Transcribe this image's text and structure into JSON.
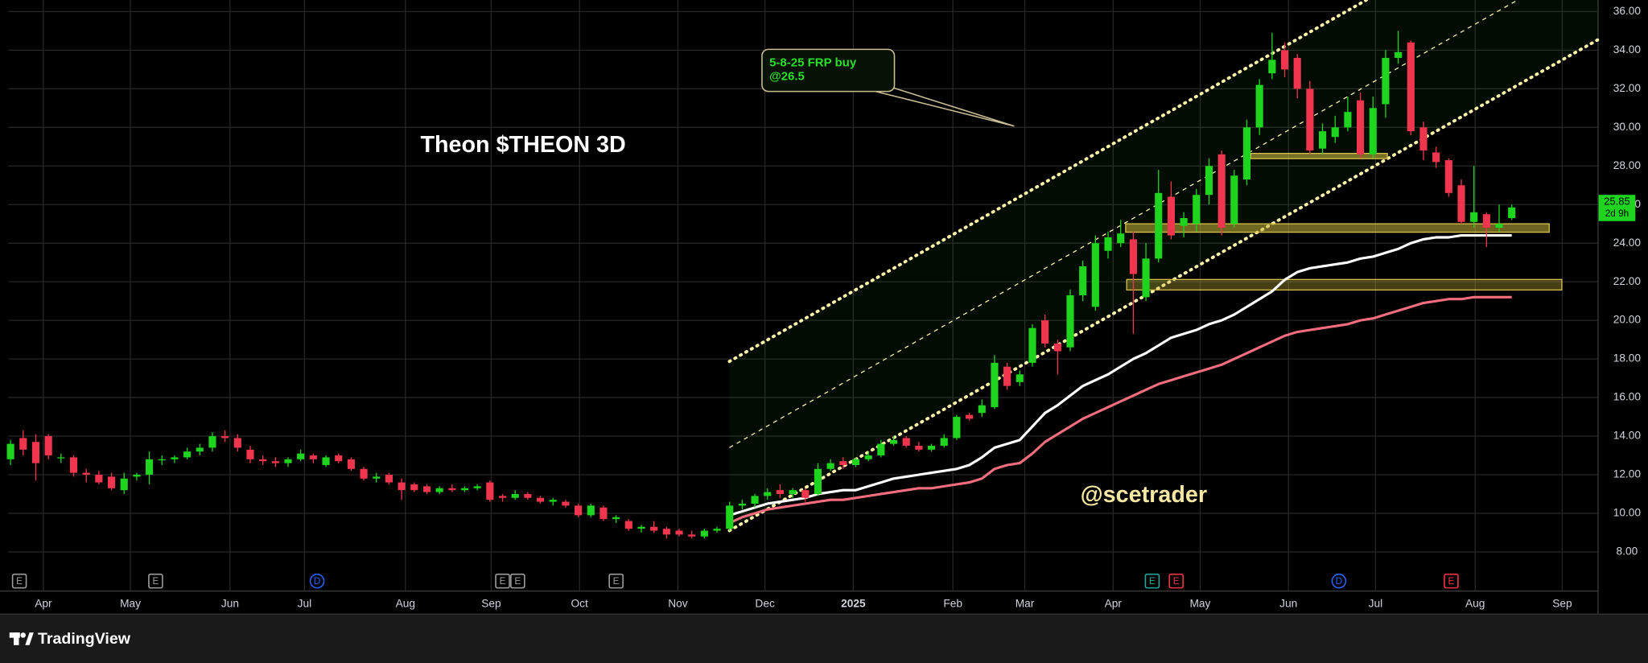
{
  "chart_data": {
    "type": "candlestick",
    "title": "Theon $THEON 3D",
    "annotation": [
      "5-8-25 FRP buy",
      "@26.5"
    ],
    "watermark": "@scetrader",
    "countdown": "2d 9h",
    "brand": "TradingView",
    "up_color": "#1ed41e",
    "down_color": "#f0364f",
    "grid": true,
    "open": [
      12.8,
      13.9,
      13.7,
      14.0,
      12.9,
      12.9,
      12.1,
      12.0,
      11.9,
      11.2,
      11.9,
      12.0,
      12.8,
      12.8,
      12.9,
      13.2,
      13.4,
      14.0,
      13.9,
      13.3,
      12.8,
      12.7,
      12.6,
      12.8,
      13.0,
      12.5,
      13.0,
      12.8,
      12.3,
      11.8,
      12.0,
      11.6,
      11.5,
      11.4,
      11.1,
      11.3,
      11.2,
      11.3,
      11.6,
      10.9,
      10.8,
      11.0,
      10.8,
      10.6,
      10.6,
      10.4,
      9.9,
      10.3,
      9.7,
      9.6,
      9.2,
      9.3,
      9.2,
      9.1,
      8.9,
      8.8,
      9.1,
      9.2,
      10.4,
      10.5,
      10.9,
      11.2,
      11.0,
      11.2,
      11.0,
      12.3,
      12.7,
      12.5,
      12.8,
      13.0,
      13.6,
      13.9,
      13.5,
      13.3,
      13.5,
      13.9,
      15.1,
      15.2,
      15.5,
      17.6,
      16.8,
      17.8,
      20.0,
      18.8,
      18.6,
      21.3,
      20.7,
      23.6,
      24.0,
      24.2,
      21.2,
      23.2,
      26.4,
      24.9,
      25.0,
      26.5,
      28.6,
      25.0,
      27.3,
      30.0,
      32.8,
      34.0,
      33.6,
      32.0,
      28.9,
      29.5,
      30.0,
      31.4,
      28.6,
      31.2,
      33.6,
      34.4,
      30.0,
      28.7,
      28.3,
      27.0,
      25.1,
      25.5,
      24.8,
      25.3
    ],
    "high": [
      13.8,
      14.3,
      14.1,
      14.1,
      13.1,
      13.0,
      12.3,
      12.2,
      12.1,
      12.1,
      12.1,
      13.2,
      13.0,
      13.0,
      13.4,
      13.6,
      14.2,
      14.3,
      14.1,
      13.5,
      13.0,
      12.9,
      12.9,
      13.3,
      13.1,
      13.0,
      13.1,
      12.9,
      12.4,
      12.1,
      12.1,
      11.8,
      11.6,
      11.5,
      11.4,
      11.5,
      11.4,
      11.5,
      11.7,
      11.0,
      11.2,
      11.1,
      10.9,
      10.8,
      10.7,
      10.5,
      10.5,
      10.4,
      9.9,
      9.7,
      9.4,
      9.6,
      9.3,
      9.2,
      9.1,
      9.2,
      9.3,
      10.6,
      10.7,
      11.0,
      11.3,
      11.5,
      11.3,
      11.3,
      12.6,
      12.8,
      12.9,
      12.9,
      13.2,
      13.8,
      14.0,
      14.0,
      13.7,
      13.6,
      14.1,
      15.1,
      15.2,
      15.9,
      18.2,
      17.8,
      17.4,
      19.8,
      20.3,
      19.0,
      21.6,
      23.1,
      24.4,
      24.6,
      25.2,
      24.6,
      24.0,
      27.8,
      27.2,
      25.6,
      26.8,
      28.4,
      28.8,
      27.8,
      30.4,
      32.5,
      34.9,
      34.4,
      33.8,
      32.4,
      30.2,
      30.6,
      31.6,
      31.8,
      31.6,
      34.0,
      35.0,
      34.5,
      30.3,
      29.0,
      28.4,
      27.3,
      28.0,
      25.6,
      26.0,
      26.0
    ],
    "low": [
      12.5,
      13.0,
      11.7,
      12.8,
      12.6,
      11.9,
      11.6,
      11.5,
      11.2,
      11.0,
      11.7,
      11.5,
      12.5,
      12.6,
      12.8,
      13.0,
      13.2,
      13.7,
      13.2,
      12.6,
      12.5,
      12.4,
      12.4,
      12.7,
      12.6,
      12.4,
      12.6,
      12.2,
      11.7,
      11.6,
      11.5,
      10.7,
      11.1,
      11.0,
      11.0,
      11.1,
      11.1,
      11.2,
      10.6,
      10.6,
      10.7,
      10.7,
      10.5,
      10.4,
      10.3,
      9.8,
      9.8,
      9.6,
      9.5,
      9.1,
      9.0,
      9.0,
      8.7,
      8.8,
      8.7,
      8.7,
      9.0,
      9.1,
      10.2,
      10.3,
      10.7,
      10.8,
      10.8,
      10.6,
      10.9,
      12.2,
      12.3,
      12.4,
      12.7,
      12.9,
      13.5,
      13.4,
      13.2,
      13.2,
      13.4,
      13.8,
      14.8,
      15.0,
      15.4,
      16.4,
      16.6,
      17.6,
      18.6,
      17.2,
      18.4,
      21.0,
      20.5,
      23.2,
      23.8,
      19.3,
      21.0,
      23.0,
      24.2,
      24.3,
      24.6,
      26.0,
      24.4,
      24.8,
      27.0,
      29.6,
      32.5,
      32.6,
      31.5,
      28.6,
      28.6,
      29.2,
      29.8,
      28.4,
      28.4,
      30.5,
      33.3,
      29.6,
      28.3,
      27.9,
      26.4,
      25.0,
      24.8,
      23.8,
      24.6,
      25.2
    ],
    "close": [
      13.6,
      13.3,
      12.6,
      13.0,
      12.9,
      12.1,
      12.0,
      11.6,
      11.3,
      11.8,
      12.0,
      12.8,
      12.8,
      12.9,
      13.2,
      13.4,
      14.0,
      13.9,
      13.4,
      12.8,
      12.7,
      12.6,
      12.8,
      13.1,
      12.8,
      12.9,
      12.7,
      12.3,
      11.8,
      11.9,
      11.6,
      11.2,
      11.2,
      11.1,
      11.3,
      11.2,
      11.3,
      11.4,
      10.7,
      10.8,
      11.0,
      10.8,
      10.6,
      10.7,
      10.4,
      9.9,
      10.4,
      9.7,
      9.8,
      9.2,
      9.3,
      9.1,
      8.9,
      8.9,
      8.8,
      9.1,
      9.2,
      10.4,
      10.5,
      10.9,
      11.1,
      11.0,
      11.2,
      10.8,
      12.3,
      12.6,
      12.5,
      12.8,
      13.0,
      13.6,
      13.8,
      13.5,
      13.3,
      13.5,
      13.9,
      15.0,
      14.9,
      15.6,
      17.8,
      16.6,
      17.2,
      19.6,
      18.8,
      18.4,
      21.3,
      22.8,
      24.0,
      24.3,
      24.5,
      22.4,
      23.2,
      26.6,
      24.4,
      25.3,
      26.5,
      28.0,
      24.8,
      27.5,
      30.0,
      32.2,
      33.5,
      33.0,
      32.0,
      28.8,
      29.8,
      30.0,
      30.8,
      28.6,
      31.0,
      33.6,
      33.9,
      29.8,
      28.8,
      28.2,
      26.6,
      25.1,
      25.6,
      24.8,
      25.0,
      25.85
    ],
    "lines": [
      {
        "color": "#ffffff",
        "values": [
          null,
          null,
          null,
          null,
          null,
          null,
          null,
          null,
          null,
          null,
          null,
          null,
          null,
          null,
          null,
          null,
          null,
          null,
          null,
          null,
          null,
          null,
          null,
          null,
          null,
          null,
          null,
          null,
          null,
          null,
          null,
          null,
          null,
          null,
          null,
          null,
          null,
          null,
          null,
          null,
          null,
          null,
          null,
          null,
          null,
          null,
          null,
          null,
          null,
          null,
          null,
          null,
          null,
          null,
          null,
          null,
          null,
          9.9,
          10.1,
          10.3,
          10.5,
          10.6,
          10.7,
          10.8,
          11.0,
          11.1,
          11.2,
          11.2,
          11.4,
          11.6,
          11.8,
          11.9,
          12.0,
          12.1,
          12.2,
          12.3,
          12.5,
          12.9,
          13.4,
          13.6,
          13.8,
          14.5,
          15.2,
          15.6,
          16.1,
          16.6,
          16.9,
          17.2,
          17.6,
          18.0,
          18.3,
          18.7,
          19.1,
          19.3,
          19.5,
          19.8,
          20.0,
          20.3,
          20.7,
          21.1,
          21.5,
          22.1,
          22.5,
          22.7,
          22.8,
          22.9,
          23.0,
          23.2,
          23.3,
          23.5,
          23.7,
          24.0,
          24.2,
          24.3,
          24.3,
          24.4,
          24.4,
          24.4,
          24.4,
          24.4
        ]
      },
      {
        "color": "#f26d7d",
        "values": [
          null,
          null,
          null,
          null,
          null,
          null,
          null,
          null,
          null,
          null,
          null,
          null,
          null,
          null,
          null,
          null,
          null,
          null,
          null,
          null,
          null,
          null,
          null,
          null,
          null,
          null,
          null,
          null,
          null,
          null,
          null,
          null,
          null,
          null,
          null,
          null,
          null,
          null,
          null,
          null,
          null,
          null,
          null,
          null,
          null,
          null,
          null,
          null,
          null,
          null,
          null,
          null,
          null,
          null,
          null,
          null,
          null,
          9.5,
          9.8,
          10.0,
          10.2,
          10.3,
          10.4,
          10.5,
          10.6,
          10.7,
          10.7,
          10.8,
          10.9,
          11.0,
          11.1,
          11.2,
          11.3,
          11.3,
          11.4,
          11.5,
          11.6,
          11.8,
          12.3,
          12.5,
          12.6,
          13.1,
          13.7,
          14.1,
          14.5,
          14.9,
          15.2,
          15.5,
          15.8,
          16.1,
          16.4,
          16.7,
          16.9,
          17.1,
          17.3,
          17.5,
          17.7,
          18.0,
          18.3,
          18.6,
          18.9,
          19.2,
          19.4,
          19.5,
          19.6,
          19.7,
          19.8,
          20.0,
          20.1,
          20.3,
          20.5,
          20.7,
          20.9,
          21.0,
          21.1,
          21.1,
          21.2,
          21.2,
          21.2,
          21.2
        ]
      }
    ],
    "xlim": [
      -0.17,
      125.8
    ],
    "xticks": [
      {
        "value": 2.6,
        "label": "Apr"
      },
      {
        "value": 9.5,
        "label": "May"
      },
      {
        "value": 17.4,
        "label": "Jun"
      },
      {
        "value": 23.3,
        "label": "Jul"
      },
      {
        "value": 31.3,
        "label": "Aug"
      },
      {
        "value": 38.1,
        "label": "Sep"
      },
      {
        "value": 45.1,
        "label": "Oct"
      },
      {
        "value": 52.9,
        "label": "Nov"
      },
      {
        "value": 59.8,
        "label": "Dec"
      },
      {
        "value": 66.8,
        "label": "2025"
      },
      {
        "value": 74.7,
        "label": "Feb"
      },
      {
        "value": 80.4,
        "label": "Mar"
      },
      {
        "value": 87.4,
        "label": "Apr"
      },
      {
        "value": 94.3,
        "label": "May"
      },
      {
        "value": 101.3,
        "label": "Jun"
      },
      {
        "value": 108.2,
        "label": "Jul"
      },
      {
        "value": 116.1,
        "label": "Aug"
      },
      {
        "value": 123,
        "label": "Sep"
      }
    ],
    "ylim": [
      6.0,
      36.6
    ],
    "yticks": [
      {
        "value": 8,
        "label": "8.00"
      },
      {
        "value": 10,
        "label": "10.00"
      },
      {
        "value": 12,
        "label": "12.00"
      },
      {
        "value": 14,
        "label": "14.00"
      },
      {
        "value": 16,
        "label": "16.00"
      },
      {
        "value": 18,
        "label": "18.00"
      },
      {
        "value": 20,
        "label": "20.00"
      },
      {
        "value": 22,
        "label": "22.00"
      },
      {
        "value": 24,
        "label": "24.00"
      },
      {
        "value": 26,
        "label": "26.00"
      },
      {
        "value": 28,
        "label": "28.00"
      },
      {
        "value": 30,
        "label": "30.00"
      },
      {
        "value": 32,
        "label": "32.00"
      },
      {
        "value": 34,
        "label": "34.00"
      },
      {
        "value": 36,
        "label": "36.00"
      }
    ],
    "events": [
      {
        "x": 0.7,
        "label": "E",
        "color": "#9e9e9e"
      },
      {
        "x": 11.5,
        "label": "E",
        "color": "#9e9e9e"
      },
      {
        "x": 24.3,
        "label": "D",
        "color": "#2962ff"
      },
      {
        "x": 39.0,
        "label": "E",
        "color": "#9e9e9e"
      },
      {
        "x": 40.2,
        "label": "E",
        "color": "#9e9e9e"
      },
      {
        "x": 48.0,
        "label": "E",
        "color": "#9e9e9e"
      },
      {
        "x": 90.5,
        "label": "E",
        "color": "#26a69a"
      },
      {
        "x": 92.4,
        "label": "E",
        "color": "#f23645"
      },
      {
        "x": 105.3,
        "label": "D",
        "color": "#2962ff"
      },
      {
        "x": 114.2,
        "label": "E",
        "color": "#f23645"
      }
    ]
  }
}
